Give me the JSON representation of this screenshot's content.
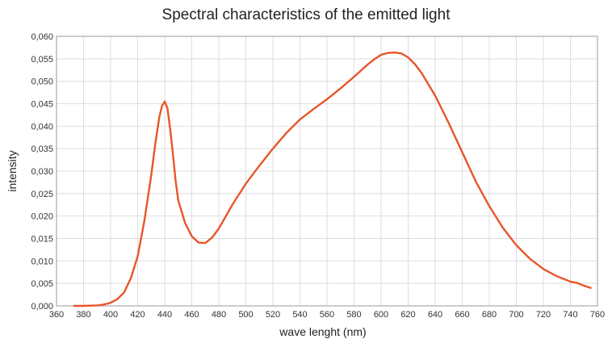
{
  "chart_data": {
    "type": "line",
    "title": "Spectral characteristics of the emitted light",
    "xlabel": "wave lenght (nm)",
    "ylabel": "intensity",
    "xlim": [
      360,
      760
    ],
    "ylim": [
      0,
      0.06
    ],
    "grid": true,
    "x_ticks": [
      360,
      380,
      400,
      420,
      440,
      460,
      480,
      500,
      520,
      540,
      560,
      580,
      600,
      620,
      640,
      660,
      680,
      700,
      720,
      740,
      760
    ],
    "x_tick_labels": [
      "360",
      "380",
      "400",
      "420",
      "440",
      "460",
      "480",
      "500",
      "520",
      "540",
      "560",
      "580",
      "600",
      "620",
      "640",
      "660",
      "680",
      "700",
      "720",
      "740",
      "760"
    ],
    "y_ticks": [
      0,
      0.005,
      0.01,
      0.015,
      0.02,
      0.025,
      0.03,
      0.035,
      0.04,
      0.045,
      0.05,
      0.055,
      0.06
    ],
    "y_tick_labels": [
      "0,000",
      "0,005",
      "0,010",
      "0,015",
      "0,020",
      "0,025",
      "0,030",
      "0,035",
      "0,040",
      "0,045",
      "0,050",
      "0,055",
      "0,060"
    ],
    "line_color": "#e8562a",
    "series": [
      {
        "x": [
          373,
          380,
          390,
          395,
          400,
          405,
          410,
          415,
          420,
          425,
          430,
          433,
          436,
          438,
          440,
          442,
          444,
          446,
          448,
          450,
          455,
          460,
          465,
          470,
          475,
          480,
          490,
          500,
          510,
          520,
          530,
          540,
          550,
          560,
          570,
          580,
          590,
          595,
          600,
          605,
          610,
          615,
          620,
          625,
          630,
          640,
          650,
          660,
          670,
          680,
          690,
          700,
          710,
          720,
          730,
          740,
          745,
          750,
          755
        ],
        "y": [
          0.0,
          0.0,
          0.0001,
          0.0003,
          0.0007,
          0.0015,
          0.003,
          0.0062,
          0.011,
          0.019,
          0.029,
          0.036,
          0.042,
          0.0445,
          0.0455,
          0.044,
          0.0395,
          0.034,
          0.028,
          0.0235,
          0.0185,
          0.0155,
          0.0141,
          0.014,
          0.0152,
          0.0172,
          0.0225,
          0.0272,
          0.0312,
          0.035,
          0.0385,
          0.0415,
          0.0438,
          0.046,
          0.0484,
          0.051,
          0.0537,
          0.0549,
          0.0559,
          0.0563,
          0.0564,
          0.0562,
          0.0553,
          0.0538,
          0.0518,
          0.0468,
          0.0407,
          0.0342,
          0.0277,
          0.0222,
          0.0174,
          0.0135,
          0.0105,
          0.0082,
          0.0066,
          0.0054,
          0.0051,
          0.0045,
          0.004
        ]
      }
    ]
  }
}
